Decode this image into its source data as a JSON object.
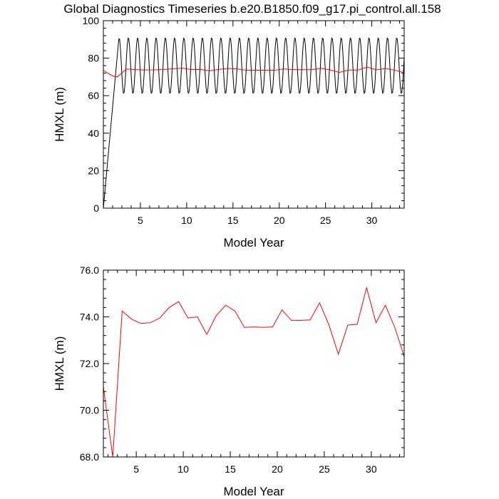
{
  "title": "Global Diagnostics Timeseries b.e20.B1850.f09_g17.pi_control.all.158",
  "chart_data": [
    {
      "type": "line",
      "ylabel": "HMXL (m)",
      "xlabel": "Model Year",
      "xlim": [
        1,
        33.5
      ],
      "ylim": [
        0,
        100
      ],
      "xticks": [
        5,
        10,
        15,
        20,
        25,
        30
      ],
      "yticks": [
        0,
        20,
        40,
        60,
        80,
        100
      ],
      "series": [
        {
          "color": "#000000",
          "monthly": {
            "start_year": 1.0,
            "spinup_end_year": 2.7,
            "spinup_start_value": 0,
            "spinup_end_value": 92,
            "cycle_mean": 76,
            "cycle_amplitude": 15
          }
        },
        {
          "color": "#ff0000",
          "x": [
            1.0,
            1.5,
            2.0,
            2.5,
            3.5,
            4.5,
            5.5,
            6.5,
            7.5,
            8.5,
            9.5,
            10.5,
            11.5,
            12.5,
            13.5,
            14.5,
            15.5,
            16.5,
            17.5,
            18.5,
            19.5,
            20.5,
            21.5,
            22.5,
            23.5,
            24.5,
            25.5,
            26.5,
            27.5,
            28.5,
            29.5,
            30.5,
            31.5,
            32.5,
            33.5
          ],
          "values": [
            73.5,
            72.0,
            70.5,
            70.0,
            74.2,
            73.9,
            73.7,
            73.75,
            73.95,
            74.4,
            74.65,
            73.95,
            74.0,
            73.25,
            74.05,
            74.5,
            74.25,
            73.55,
            73.55,
            73.55,
            73.55,
            74.3,
            73.85,
            73.85,
            73.85,
            74.6,
            73.7,
            72.4,
            73.65,
            73.65,
            75.25,
            73.75,
            74.5,
            73.55,
            72.3
          ]
        }
      ]
    },
    {
      "type": "line",
      "ylabel": "HMXL (m)",
      "xlabel": "Model Year",
      "xlim": [
        1.5,
        33.5
      ],
      "ylim": [
        68,
        76
      ],
      "xticks": [
        5,
        10,
        15,
        20,
        25,
        30
      ],
      "yticks": [
        68,
        70,
        72,
        74,
        76
      ],
      "ytick_labels": [
        "68.0",
        "70.0",
        "72.0",
        "74.0",
        "76.0"
      ],
      "series": [
        {
          "color": "#ff0000",
          "x": [
            1.5,
            2.5,
            3.5,
            4.5,
            5.5,
            6.5,
            7.5,
            8.5,
            9.5,
            10.5,
            11.5,
            12.5,
            13.5,
            14.5,
            15.5,
            16.5,
            17.5,
            18.5,
            19.5,
            20.5,
            21.5,
            22.5,
            23.5,
            24.5,
            25.5,
            26.5,
            27.5,
            28.5,
            29.5,
            30.5,
            31.5,
            32.5,
            33.5
          ],
          "values": [
            71.0,
            68.0,
            74.25,
            73.9,
            73.72,
            73.75,
            73.95,
            74.4,
            74.65,
            73.95,
            74.0,
            73.25,
            74.05,
            74.5,
            74.25,
            73.55,
            73.57,
            73.55,
            73.57,
            74.3,
            73.85,
            73.85,
            73.87,
            74.6,
            73.65,
            72.4,
            73.65,
            73.68,
            75.25,
            73.75,
            74.5,
            73.55,
            72.3
          ]
        }
      ]
    }
  ]
}
